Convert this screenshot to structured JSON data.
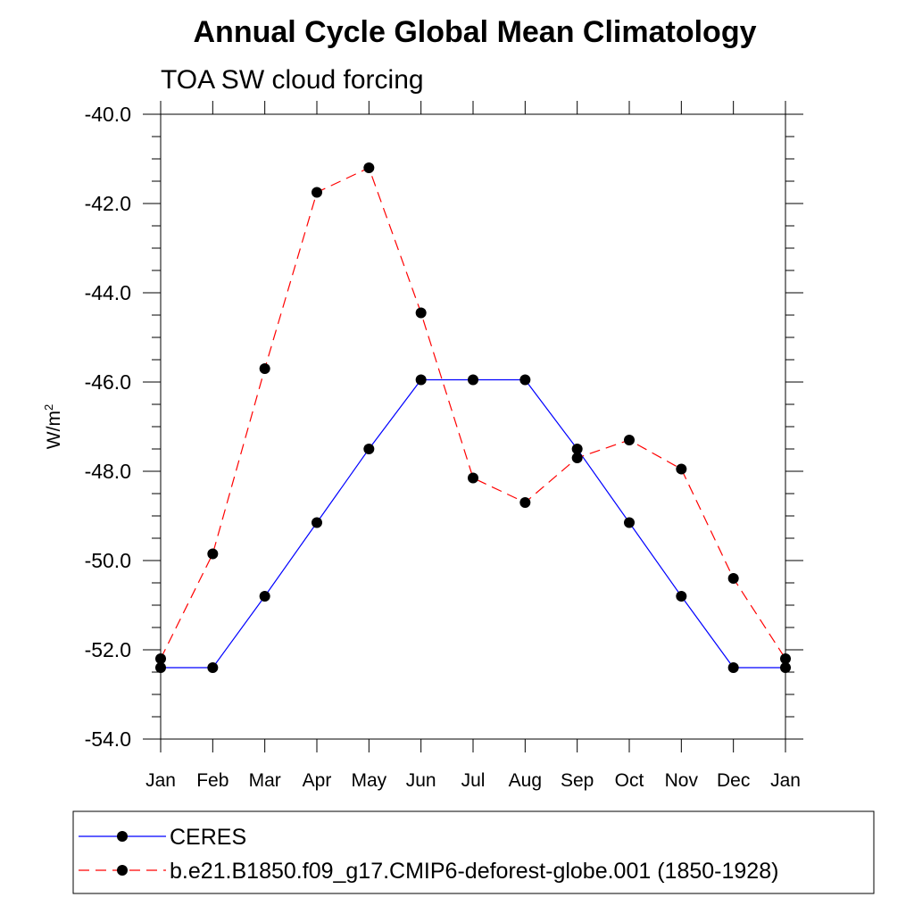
{
  "chart_data": {
    "type": "line",
    "title": "Annual Cycle Global Mean Climatology",
    "subtitle": "TOA SW cloud forcing",
    "ylabel": "W/m",
    "ylabel_superscript": "2",
    "xlabel": "",
    "categories": [
      "Jan",
      "Feb",
      "Mar",
      "Apr",
      "May",
      "Jun",
      "Jul",
      "Aug",
      "Sep",
      "Oct",
      "Nov",
      "Dec",
      "Jan"
    ],
    "ylim": [
      -54.0,
      -40.0
    ],
    "yticks": [
      "-40.0",
      "-42.0",
      "-44.0",
      "-46.0",
      "-48.0",
      "-50.0",
      "-52.0",
      "-54.0"
    ],
    "grid": false,
    "legend_position": "bottom",
    "series": [
      {
        "name": "CERES",
        "color": "#0000ff",
        "line_style": "solid",
        "marker": "filled-circle",
        "values": [
          -52.4,
          -52.4,
          -50.8,
          -49.15,
          -47.5,
          -45.95,
          -45.95,
          -45.95,
          -47.5,
          -49.15,
          -50.8,
          -52.4,
          -52.4
        ]
      },
      {
        "name": "b.e21.B1850.f09_g17.CMIP6-deforest-globe.001 (1850-1928)",
        "color": "#ff0000",
        "line_style": "dashed",
        "marker": "filled-circle",
        "values": [
          -52.2,
          -49.85,
          -45.7,
          -41.75,
          -41.2,
          -44.45,
          -48.15,
          -48.7,
          -47.7,
          -47.3,
          -47.95,
          -50.4,
          -52.2
        ]
      }
    ]
  }
}
